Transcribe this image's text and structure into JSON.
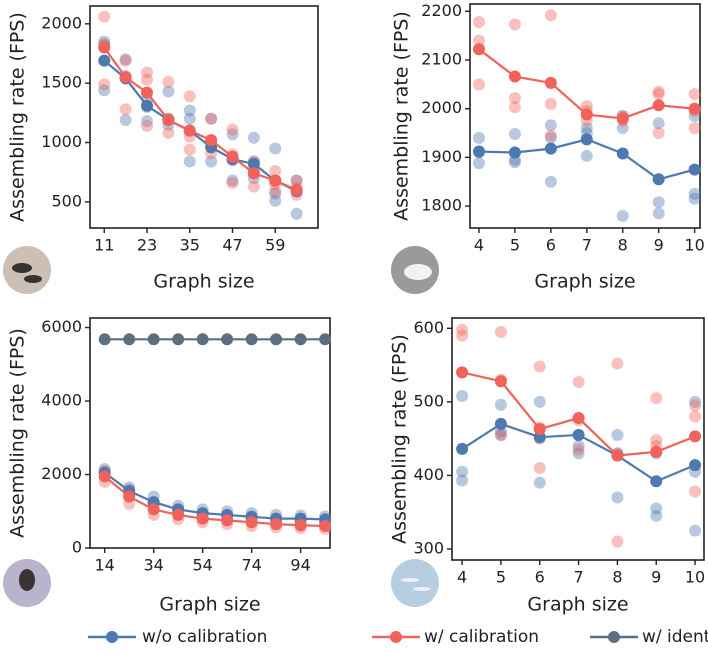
{
  "chart_data": [
    {
      "type": "line",
      "xlabel": "Graph size",
      "ylabel": "Assembling rate (FPS)",
      "x": [
        11,
        17,
        23,
        29,
        35,
        41,
        47,
        53,
        59,
        65
      ],
      "xlim": [
        7,
        71
      ],
      "xticks": [
        11,
        23,
        35,
        47,
        59
      ],
      "ylim": [
        280,
        2150
      ],
      "yticks": [
        500,
        1000,
        1500,
        2000
      ],
      "series": [
        {
          "name": "w/o calibration",
          "color": "#4e79b0",
          "values": [
            1690,
            1540,
            1310,
            1190,
            1100,
            960,
            860,
            820,
            680,
            590
          ],
          "samples": [
            [
              1850,
              1440,
              1820
            ],
            [
              1700,
              1190,
              1560
            ],
            [
              1360,
              1180,
              1300
            ],
            [
              1430,
              1150,
              1200
            ],
            [
              1270,
              840,
              1200
            ],
            [
              1200,
              840,
              1000
            ],
            [
              1070,
              680,
              850
            ],
            [
              1040,
              840,
              700
            ],
            [
              950,
              510,
              570
            ],
            [
              680,
              400,
              600
            ]
          ]
        },
        {
          "name": "w/ calibration",
          "color": "#f0625a",
          "values": [
            1800,
            1550,
            1420,
            1190,
            1100,
            1020,
            880,
            740,
            680,
            600
          ],
          "samples": [
            [
              2060,
              1490,
              1830
            ],
            [
              1690,
              1280,
              1540
            ],
            [
              1590,
              1140,
              1530
            ],
            [
              1510,
              1080,
              1200
            ],
            [
              1390,
              940,
              1050
            ],
            [
              1200,
              910,
              1000
            ],
            [
              1110,
              660,
              900
            ],
            [
              840,
              630,
              770
            ],
            [
              760,
              590,
              650
            ],
            [
              680,
              560,
              620
            ]
          ]
        }
      ]
    },
    {
      "type": "line",
      "xlabel": "Graph size",
      "ylabel": "Assembling rate (FPS)",
      "x": [
        4,
        5,
        6,
        7,
        8,
        9,
        10
      ],
      "xlim": [
        3.75,
        10.15
      ],
      "xticks": [
        4,
        5,
        6,
        7,
        8,
        9,
        10
      ],
      "ylim": [
        1755,
        2215
      ],
      "yticks": [
        1800,
        1900,
        2000,
        2100,
        2200
      ],
      "series": [
        {
          "name": "w/o calibration",
          "color": "#4e79b0",
          "values": [
            1912,
            1910,
            1918,
            1937,
            1908,
            1855,
            1875
          ],
          "samples": [
            [
              1940,
              1888,
              1910
            ],
            [
              1948,
              1890,
              1895
            ],
            [
              1966,
              1850,
              1940
            ],
            [
              1950,
              1903,
              1960
            ],
            [
              1960,
              1780,
              1985
            ],
            [
              1970,
              1808,
              1785
            ],
            [
              1985,
              1825,
              1815
            ]
          ]
        },
        {
          "name": "w/ calibration",
          "color": "#f0625a",
          "values": [
            2122,
            2066,
            2053,
            1988,
            1980,
            2007,
            2000
          ],
          "samples": [
            [
              2178,
              2140,
              2050
            ],
            [
              2173,
              2022,
              2003
            ],
            [
              2192,
              2010,
              1945
            ],
            [
              2005,
              1975,
              1995
            ],
            [
              1985,
              1975,
              1980
            ],
            [
              2035,
              1950,
              2030
            ],
            [
              2030,
              1960,
              1995
            ]
          ]
        }
      ]
    },
    {
      "type": "line",
      "xlabel": "Graph size",
      "ylabel": "Assembling rate (FPS)",
      "x": [
        14,
        24,
        34,
        44,
        54,
        64,
        74,
        84,
        94,
        104
      ],
      "xlim": [
        8,
        106
      ],
      "xticks": [
        14,
        34,
        54,
        74,
        94
      ],
      "ylim": [
        0,
        6260
      ],
      "yticks": [
        0,
        2000,
        4000,
        6000
      ],
      "series": [
        {
          "name": "w/o calibration",
          "color": "#4e79b0",
          "values": [
            2050,
            1550,
            1250,
            1050,
            950,
            900,
            850,
            800,
            800,
            780
          ],
          "samples": [
            [
              2150,
              1950
            ],
            [
              1650,
              1450
            ],
            [
              1400,
              1150
            ],
            [
              1150,
              950
            ],
            [
              1050,
              880
            ],
            [
              1000,
              820
            ],
            [
              950,
              780
            ],
            [
              900,
              740
            ],
            [
              880,
              730
            ],
            [
              860,
              720
            ]
          ]
        },
        {
          "name": "w/ calibration",
          "color": "#f0625a",
          "values": [
            1950,
            1400,
            1050,
            900,
            800,
            750,
            700,
            650,
            620,
            600
          ],
          "samples": [
            [
              2100,
              1800
            ],
            [
              1600,
              1200
            ],
            [
              1200,
              900
            ],
            [
              1000,
              780
            ],
            [
              900,
              700
            ],
            [
              850,
              650
            ],
            [
              800,
              600
            ],
            [
              740,
              560
            ],
            [
              700,
              540
            ],
            [
              680,
              520
            ]
          ]
        },
        {
          "name": "w/ identity",
          "color": "#5b6f80",
          "values": [
            5680,
            5680,
            5680,
            5680,
            5680,
            5680,
            5680,
            5680,
            5680,
            5680
          ]
        }
      ]
    },
    {
      "type": "line",
      "xlabel": "Graph size",
      "ylabel": "Assembling rate (FPS)",
      "x": [
        4,
        5,
        6,
        7,
        8,
        9,
        10
      ],
      "xlim": [
        3.74,
        10.23
      ],
      "xticks": [
        4,
        5,
        6,
        7,
        8,
        9,
        10
      ],
      "ylim": [
        285,
        614
      ],
      "yticks": [
        300,
        400,
        500,
        600
      ],
      "series": [
        {
          "name": "w/o calibration",
          "color": "#4e79b0",
          "values": [
            436,
            470,
            452,
            455,
            427,
            392,
            414
          ],
          "samples": [
            [
              508,
              405,
              393
            ],
            [
              496,
              455,
              460
            ],
            [
              500,
              450,
              390
            ],
            [
              430,
              455,
              440
            ],
            [
              455,
              370,
              430
            ],
            [
              355,
              345,
              430
            ],
            [
              500,
              325,
              405
            ]
          ]
        },
        {
          "name": "w/ calibration",
          "color": "#f0625a",
          "values": [
            540,
            528,
            463,
            478,
            427,
            432,
            453
          ],
          "samples": [
            [
              598,
              590,
              540
            ],
            [
              595,
              530,
              455
            ],
            [
              548,
              410,
              465
            ],
            [
              527,
              475,
              435
            ],
            [
              552,
              310,
              430
            ],
            [
              505,
              448,
              440
            ],
            [
              495,
              378,
              480
            ]
          ]
        }
      ]
    }
  ]
}
